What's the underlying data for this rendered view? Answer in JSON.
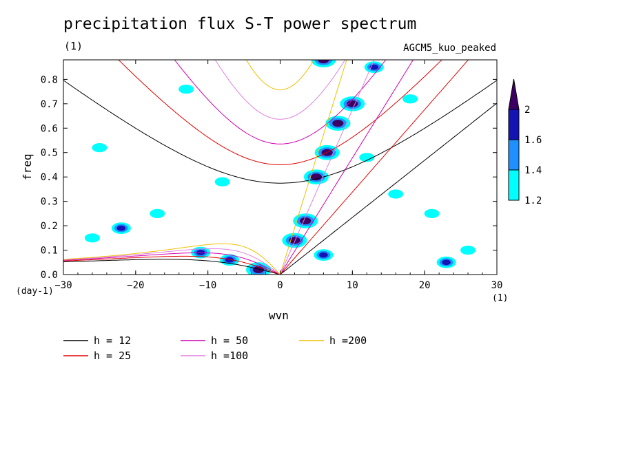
{
  "chart_data": {
    "type": "heatmap",
    "title": "precipitation flux S-T power spectrum",
    "subtitle_left": "(1)",
    "subtitle_right": "AGCM5_kuo_peaked",
    "xlabel": "wvn",
    "ylabel": "freq",
    "x_unit": "(1)",
    "y_unit": "(day-1)",
    "xlim": [
      -30,
      30
    ],
    "ylim": [
      0,
      0.88
    ],
    "xticks": [
      -30,
      -20,
      -10,
      0,
      10,
      20,
      30
    ],
    "yticks": [
      0.0,
      0.1,
      0.2,
      0.3,
      0.4,
      0.5,
      0.6,
      0.7,
      0.8
    ],
    "colorbar": {
      "levels": [
        1.2,
        1.4,
        1.6,
        2
      ],
      "colors": [
        "#00ffff",
        "#1e90ff",
        "#1414b4",
        "#3c0064"
      ]
    },
    "dispersion_curves": [
      {
        "label": "h = 12",
        "h": 12,
        "color": "#000000"
      },
      {
        "label": "h = 25",
        "h": 25,
        "color": "#e00000"
      },
      {
        "label": "h = 50",
        "h": 50,
        "color": "#d000b0"
      },
      {
        "label": "h =100",
        "h": 100,
        "color": "#e080e0"
      },
      {
        "label": "h =200",
        "h": 200,
        "color": "#f0c000"
      }
    ],
    "power_regions": [
      {
        "x": 5.0,
        "y": 0.4,
        "level": 2
      },
      {
        "x": 6.5,
        "y": 0.5,
        "level": 2
      },
      {
        "x": 8.0,
        "y": 0.62,
        "level": 2
      },
      {
        "x": 10.0,
        "y": 0.7,
        "level": 2
      },
      {
        "x": 6.0,
        "y": 0.88,
        "level": 2
      },
      {
        "x": 3.5,
        "y": 0.22,
        "level": 2
      },
      {
        "x": 2.0,
        "y": 0.14,
        "level": 2
      },
      {
        "x": -3.0,
        "y": 0.02,
        "level": 2
      },
      {
        "x": -7.0,
        "y": 0.06,
        "level": 1.6
      },
      {
        "x": -11.0,
        "y": 0.09,
        "level": 1.6
      },
      {
        "x": -22.0,
        "y": 0.19,
        "level": 1.6
      },
      {
        "x": 13.0,
        "y": 0.85,
        "level": 1.6
      },
      {
        "x": 23.0,
        "y": 0.05,
        "level": 1.6
      },
      {
        "x": 6.0,
        "y": 0.08,
        "level": 1.6
      },
      {
        "x": -8.0,
        "y": 0.38,
        "level": 1.2
      },
      {
        "x": 12.0,
        "y": 0.48,
        "level": 1.2
      },
      {
        "x": 16.0,
        "y": 0.33,
        "level": 1.2
      },
      {
        "x": -26.0,
        "y": 0.15,
        "level": 1.2
      },
      {
        "x": 26.0,
        "y": 0.1,
        "level": 1.2
      },
      {
        "x": -17.0,
        "y": 0.25,
        "level": 1.2
      },
      {
        "x": 18.0,
        "y": 0.72,
        "level": 1.2
      },
      {
        "x": -25.0,
        "y": 0.52,
        "level": 1.2
      },
      {
        "x": -13.0,
        "y": 0.76,
        "level": 1.2
      },
      {
        "x": 21.0,
        "y": 0.25,
        "level": 1.2
      }
    ]
  }
}
